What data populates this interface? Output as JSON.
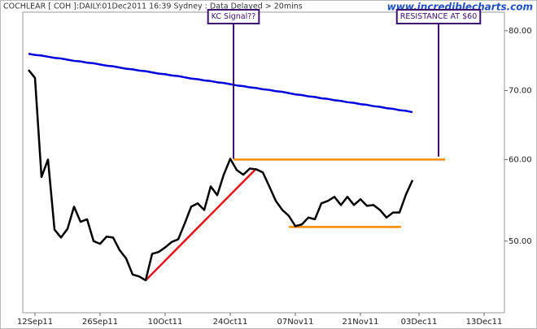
{
  "chart_data": {
    "type": "line",
    "title": "COCHLEAR [ COH ]:DAILY:01Dec2011 16:39 Sydney : Data Delayed > 20mins",
    "source": "www.incrediblecharts.com",
    "categories": [
      null,
      "12Sep11",
      null,
      null,
      null,
      null,
      null,
      null,
      null,
      null,
      null,
      "26Sep11",
      null,
      null,
      null,
      null,
      null,
      null,
      null,
      null,
      null,
      "10Oct11",
      null,
      null,
      null,
      null,
      null,
      null,
      null,
      null,
      null,
      "24Oct11",
      null,
      null,
      null,
      null,
      null,
      null,
      null,
      null,
      null,
      "07Nov11",
      null,
      null,
      null,
      null,
      null,
      null,
      null,
      null,
      null,
      "21Nov11",
      null,
      null,
      null,
      null,
      null,
      null,
      null,
      null,
      "03Dec11",
      null,
      null,
      null,
      null,
      null,
      null,
      null,
      null,
      null,
      "13Dec11",
      null,
      null,
      null
    ],
    "series": [
      {
        "color": "#0000dd",
        "values": [
          76.0,
          75.8,
          75.7,
          75.5,
          75.3,
          75.2,
          75.0,
          74.8,
          74.7,
          74.5,
          74.4,
          74.2,
          74.0,
          73.9,
          73.7,
          73.5,
          73.4,
          73.2,
          73.1,
          72.9,
          72.7,
          72.6,
          72.4,
          72.3,
          72.1,
          71.9,
          71.8,
          71.6,
          71.5,
          71.3,
          71.2,
          71.0,
          70.8,
          70.7,
          70.5,
          70.4,
          70.2,
          70.1,
          69.9,
          69.8,
          69.6,
          69.4,
          69.3,
          69.1,
          69.0,
          68.8,
          68.7,
          68.5,
          68.4,
          68.2,
          68.1,
          67.9,
          67.8,
          67.6,
          67.5,
          67.3,
          67.2,
          67.0,
          66.9,
          66.7,
          null,
          null,
          null,
          null,
          null,
          null,
          null,
          null,
          null,
          null,
          null,
          null,
          null,
          null
        ]
      },
      {
        "color": "#000000",
        "values": [
          73.3,
          72.0,
          57.7,
          60.0,
          51.3,
          50.4,
          51.4,
          54.0,
          52.2,
          52.5,
          50.0,
          49.7,
          50.5,
          50.4,
          49.0,
          48.1,
          46.4,
          46.2,
          45.8,
          48.6,
          48.8,
          49.3,
          49.9,
          50.2,
          52.0,
          54.0,
          54.4,
          53.6,
          56.5,
          55.4,
          58.0,
          60.1,
          58.6,
          58.0,
          58.8,
          58.7,
          58.3,
          56.5,
          54.7,
          53.6,
          52.9,
          51.7,
          51.9,
          52.7,
          52.5,
          54.4,
          54.7,
          55.2,
          54.2,
          55.2,
          54.2,
          54.9,
          54.1,
          54.2,
          53.6,
          52.7,
          53.3,
          53.3,
          55.5,
          57.3,
          null,
          null,
          null,
          null,
          null,
          null,
          null,
          null,
          null,
          null,
          null,
          null,
          null,
          null
        ]
      }
    ],
    "ylim": [
      42.6,
      83.4
    ],
    "log_scale": true,
    "yticks": [
      {
        "value": 50,
        "label": "50.00"
      },
      {
        "value": 60,
        "label": "60.00"
      },
      {
        "value": 70,
        "label": "70.00"
      },
      {
        "value": 80,
        "label": "80.00"
      }
    ],
    "lines": [
      {
        "x": [
          18,
          35
        ],
        "y": [
          45.8,
          58.8
        ],
        "color": "#e8141c"
      },
      {
        "x": [
          31.5,
          64
        ],
        "y": [
          60,
          60
        ],
        "color": "#ff8c00"
      },
      {
        "x": [
          40,
          57.25
        ],
        "y": [
          51.6,
          51.6
        ],
        "color": "#ff8c00"
      }
    ],
    "annotations": [
      {
        "text": "KC Signal??",
        "x": 31.5,
        "y": 60.1,
        "color": "#3b1070"
      },
      {
        "text": "RESISTANCE AT $60",
        "x": 63,
        "y": 60.4,
        "color": "#3b1070"
      }
    ]
  }
}
